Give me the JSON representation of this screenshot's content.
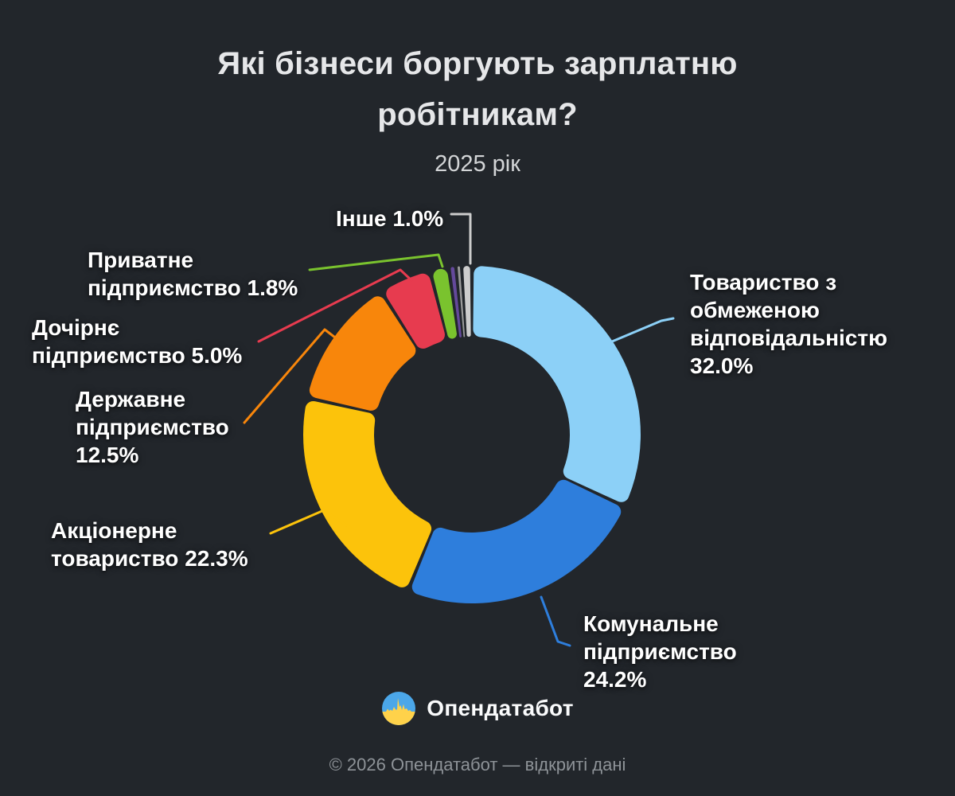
{
  "header": {
    "title_line1": "Які бізнеси боргують зарплатню",
    "title_line2": "робітникам?",
    "subtitle": "2025 рік"
  },
  "chart_data": {
    "type": "donut",
    "unit": "%",
    "background": "#22262B",
    "legend_position": "callout-labels",
    "segments": [
      {
        "name": "Товариство з обмеженою відповідальністю",
        "value": 32.0,
        "color": "#8CD0F7",
        "label_lines": [
          "Товариство з",
          "обмеженою",
          "відповідальністю",
          "32.0%"
        ]
      },
      {
        "name": "Комунальне підприємство",
        "value": 24.2,
        "color": "#2E7EDC",
        "label_lines": [
          "Комунальне",
          "підприємство",
          "24.2%"
        ]
      },
      {
        "name": "Акціонерне товариство",
        "value": 22.3,
        "color": "#FCC30B",
        "label_lines": [
          "Акціонерне",
          "товариство 22.3%"
        ]
      },
      {
        "name": "Державне підприємство",
        "value": 12.5,
        "color": "#F8860B",
        "label_lines": [
          "Державне",
          "підприємство",
          "12.5%"
        ]
      },
      {
        "name": "Дочірнє підприємство",
        "value": 5.0,
        "color": "#E73B4F",
        "label_lines": [
          "Дочірнє",
          "підприємство 5.0%"
        ]
      },
      {
        "name": "Приватне підприємство",
        "value": 1.8,
        "color": "#7AC32E",
        "label_lines": [
          "Приватне",
          "підприємство 1.8%"
        ]
      },
      {
        "name": "",
        "value": 0.7,
        "color": "#64499B",
        "label_lines": []
      },
      {
        "name": "",
        "value": 0.5,
        "color": "#9B9B9B",
        "label_lines": []
      },
      {
        "name": "Інше",
        "value": 1.0,
        "color": "#CDCDCD",
        "label_lines": [
          "Інше 1.0%"
        ]
      }
    ]
  },
  "footer": {
    "brand": "Опендатабот",
    "copyright": "© 2026 Опендатабот — відкриті дані",
    "logo_colors": {
      "blue": "#4BA7E9",
      "yellow": "#FFD24A"
    }
  }
}
